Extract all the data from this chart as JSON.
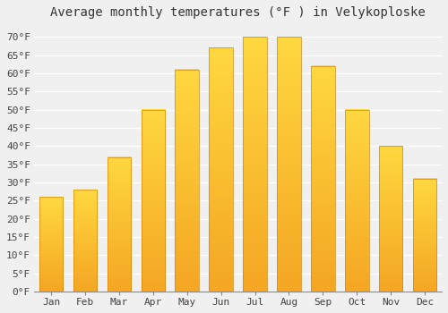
{
  "title": "Average monthly temperatures (°F ) in Velykoploske",
  "months": [
    "Jan",
    "Feb",
    "Mar",
    "Apr",
    "May",
    "Jun",
    "Jul",
    "Aug",
    "Sep",
    "Oct",
    "Nov",
    "Dec"
  ],
  "values": [
    26,
    28,
    37,
    50,
    61,
    67,
    70,
    70,
    62,
    50,
    40,
    31
  ],
  "ylim": [
    0,
    73
  ],
  "yticks": [
    0,
    5,
    10,
    15,
    20,
    25,
    30,
    35,
    40,
    45,
    50,
    55,
    60,
    65,
    70
  ],
  "ytick_labels": [
    "0°F",
    "5°F",
    "10°F",
    "15°F",
    "20°F",
    "25°F",
    "30°F",
    "35°F",
    "40°F",
    "45°F",
    "50°F",
    "55°F",
    "60°F",
    "65°F",
    "70°F"
  ],
  "background_color": "#f0f0f0",
  "grid_color": "#ffffff",
  "title_fontsize": 10,
  "tick_fontsize": 8,
  "bar_color_bottom": "#F5A623",
  "bar_color_top": "#FFD840",
  "bar_edge_color": "#D4880A",
  "bar_width": 0.7
}
